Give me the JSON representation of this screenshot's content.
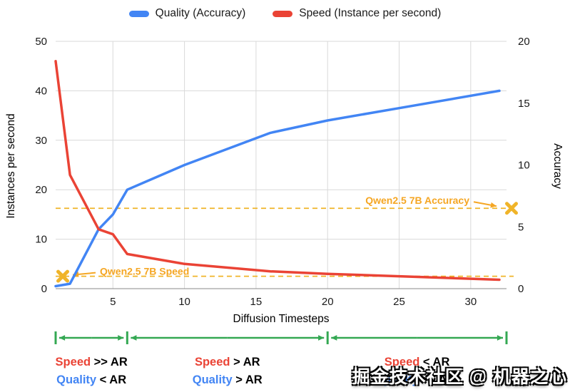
{
  "legend": {
    "items": [
      {
        "label": "Quality (Accuracy)",
        "color": "#4285F4"
      },
      {
        "label": "Speed (Instance per second)",
        "color": "#EA4335"
      }
    ]
  },
  "chart_data": {
    "type": "line",
    "grid": true,
    "legend_position": "top",
    "x_axis": {
      "title": "Diffusion Timesteps",
      "range": [
        1,
        32.5
      ],
      "ticks": [
        5,
        10,
        15,
        20,
        25,
        30
      ]
    },
    "left_axis": {
      "title": "Instances per second",
      "range": [
        0,
        50
      ],
      "ticks": [
        0,
        10,
        20,
        30,
        40,
        50
      ]
    },
    "right_axis": {
      "title": "Accuracy",
      "range": [
        0,
        20
      ],
      "ticks": [
        0,
        5,
        10,
        15,
        20
      ]
    },
    "series": [
      {
        "name": "Quality (Accuracy)",
        "axis": "right",
        "color": "#4285F4",
        "x": [
          1,
          2,
          4,
          5,
          6,
          10,
          16,
          20,
          25,
          32
        ],
        "values": [
          0.2,
          0.4,
          4.8,
          6,
          8,
          10,
          12.6,
          13.6,
          14.6,
          16
        ]
      },
      {
        "name": "Speed (Instance per second)",
        "axis": "left",
        "color": "#EA4335",
        "x": [
          1,
          2,
          4,
          5,
          6,
          10,
          16,
          20,
          25,
          32
        ],
        "values": [
          46,
          23,
          12,
          11,
          7,
          5,
          3.5,
          3,
          2.5,
          1.8
        ]
      }
    ],
    "reference_lines": [
      {
        "label": "Qwen2.5 7B Accuracy",
        "axis": "right",
        "value": 6.5,
        "color": "#F5A623",
        "line_color": "#F0B429",
        "marker": "x",
        "marker_side": "right"
      },
      {
        "label": "Qwen2.5 7B Speed",
        "axis": "left",
        "value": 2.5,
        "color": "#F5A623",
        "line_color": "#F0B429",
        "marker": "x",
        "marker_side": "left"
      }
    ],
    "regions": [
      {
        "x_start": 1,
        "x_end": 6,
        "speed_word": "Speed",
        "speed_rest": " >> AR",
        "quality_word": "Quality",
        "quality_rest": " < AR"
      },
      {
        "x_start": 6,
        "x_end": 20,
        "speed_word": "Speed",
        "speed_rest": " > AR",
        "quality_word": "Quality",
        "quality_rest": " > AR"
      },
      {
        "x_start": 20,
        "x_end": 32.5,
        "speed_word": "Speed",
        "speed_rest": " < AR",
        "quality_word": "Quality",
        "quality_rest": " >> AR"
      }
    ],
    "region_arrow_color": "#34A853",
    "speed_color": "#EA4335",
    "quality_color": "#4285F4"
  },
  "watermark": "掘金技术社区 @ 机器之心"
}
